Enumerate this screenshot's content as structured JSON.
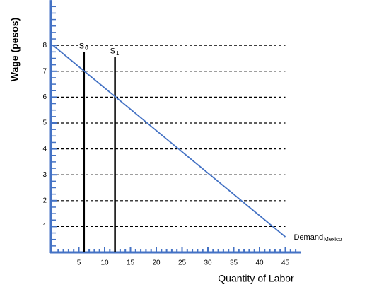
{
  "chart_data": {
    "type": "line",
    "xlabel": "Quantity of Labor",
    "ylabel": "Wage (pesos)",
    "xlim": [
      0,
      48
    ],
    "ylim": [
      0,
      9.75
    ],
    "xticks": [
      5,
      10,
      15,
      20,
      25,
      30,
      35,
      40,
      45
    ],
    "yticks": [
      1,
      2,
      3,
      4,
      5,
      6,
      7,
      8
    ],
    "minor_tick_step": {
      "x": 1,
      "y": 0.25
    },
    "grid": true,
    "axis_color": "#4472c4",
    "series": [
      {
        "name": "S",
        "subscript": "0",
        "color": "#000000",
        "x": [
          6,
          6
        ],
        "values": [
          0,
          7.75
        ]
      },
      {
        "name": "S",
        "subscript": "1",
        "color": "#000000",
        "x": [
          12,
          12
        ],
        "values": [
          0,
          7.55
        ]
      },
      {
        "name": "Demand",
        "subscript": "Mexico",
        "color": "#4472c4",
        "x": [
          0,
          45
        ],
        "values": [
          8,
          0.6
        ]
      }
    ]
  }
}
